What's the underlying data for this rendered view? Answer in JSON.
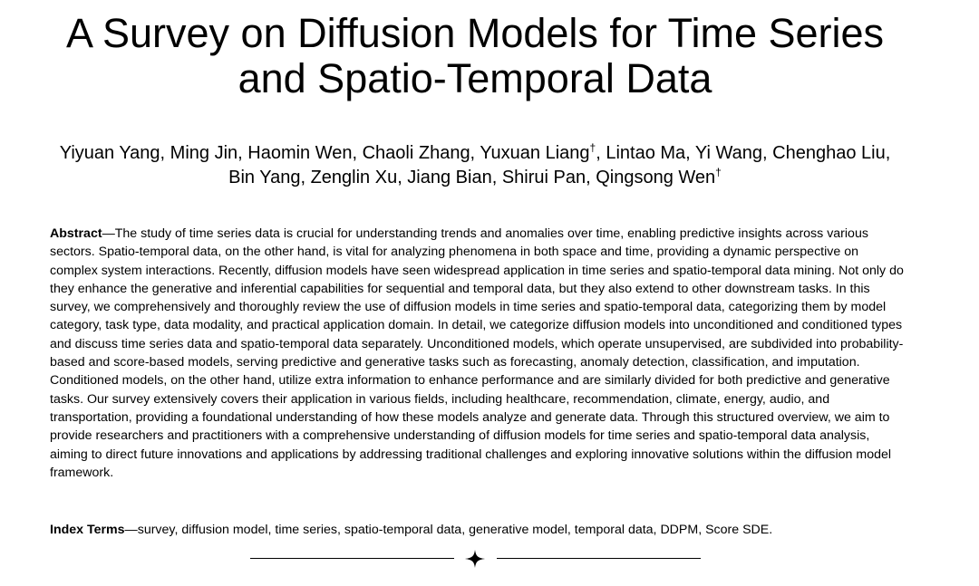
{
  "paper": {
    "title_line1": "A Survey on Diffusion Models for Time Series",
    "title_line2": "and Spatio-Temporal Data",
    "authors": {
      "line1_part1": "Yiyuan Yang, Ming Jin, Haomin Wen, Chaoli Zhang, Yuxuan Liang",
      "line1_mark": "†",
      "line1_part2": ", Lintao Ma, Yi Wang, Chenghao Liu,",
      "line2_part1": "Bin Yang, Zenglin Xu, Jiang Bian, Shirui Pan, Qingsong Wen",
      "line2_mark": "†"
    },
    "abstract": {
      "label": "Abstract",
      "text": "—The study of time series data is crucial for understanding trends and anomalies over time, enabling predictive insights across various sectors. Spatio-temporal data, on the other hand, is vital for analyzing phenomena in both space and time, providing a dynamic perspective on complex system interactions. Recently, diffusion models have seen widespread application in time series and spatio-temporal data mining. Not only do they enhance the generative and inferential capabilities for sequential and temporal data, but they also extend to other downstream tasks. In this survey, we comprehensively and thoroughly review the use of diffusion models in time series and spatio-temporal data, categorizing them by model category, task type, data modality, and practical application domain. In detail, we categorize diffusion models into unconditioned and conditioned types and discuss time series data and spatio-temporal data separately. Unconditioned models, which operate unsupervised, are subdivided into probability-based and score-based models, serving predictive and generative tasks such as forecasting, anomaly detection, classification, and imputation. Conditioned models, on the other hand, utilize extra information to enhance performance and are similarly divided for both predictive and generative tasks. Our survey extensively covers their application in various fields, including healthcare, recommendation, climate, energy, audio, and transportation, providing a foundational understanding of how these models analyze and generate data. Through this structured overview, we aim to provide researchers and practitioners with a comprehensive understanding of diffusion models for time series and spatio-temporal data analysis, aiming to direct future innovations and applications by addressing traditional challenges and exploring innovative solutions within the diffusion model framework."
    },
    "index_terms": {
      "label": "Index Terms",
      "text": "—survey, diffusion model, time series, spatio-temporal data, generative model, temporal data, DDPM, Score SDE."
    },
    "divider": {
      "icon": "four-point-star-icon"
    }
  }
}
